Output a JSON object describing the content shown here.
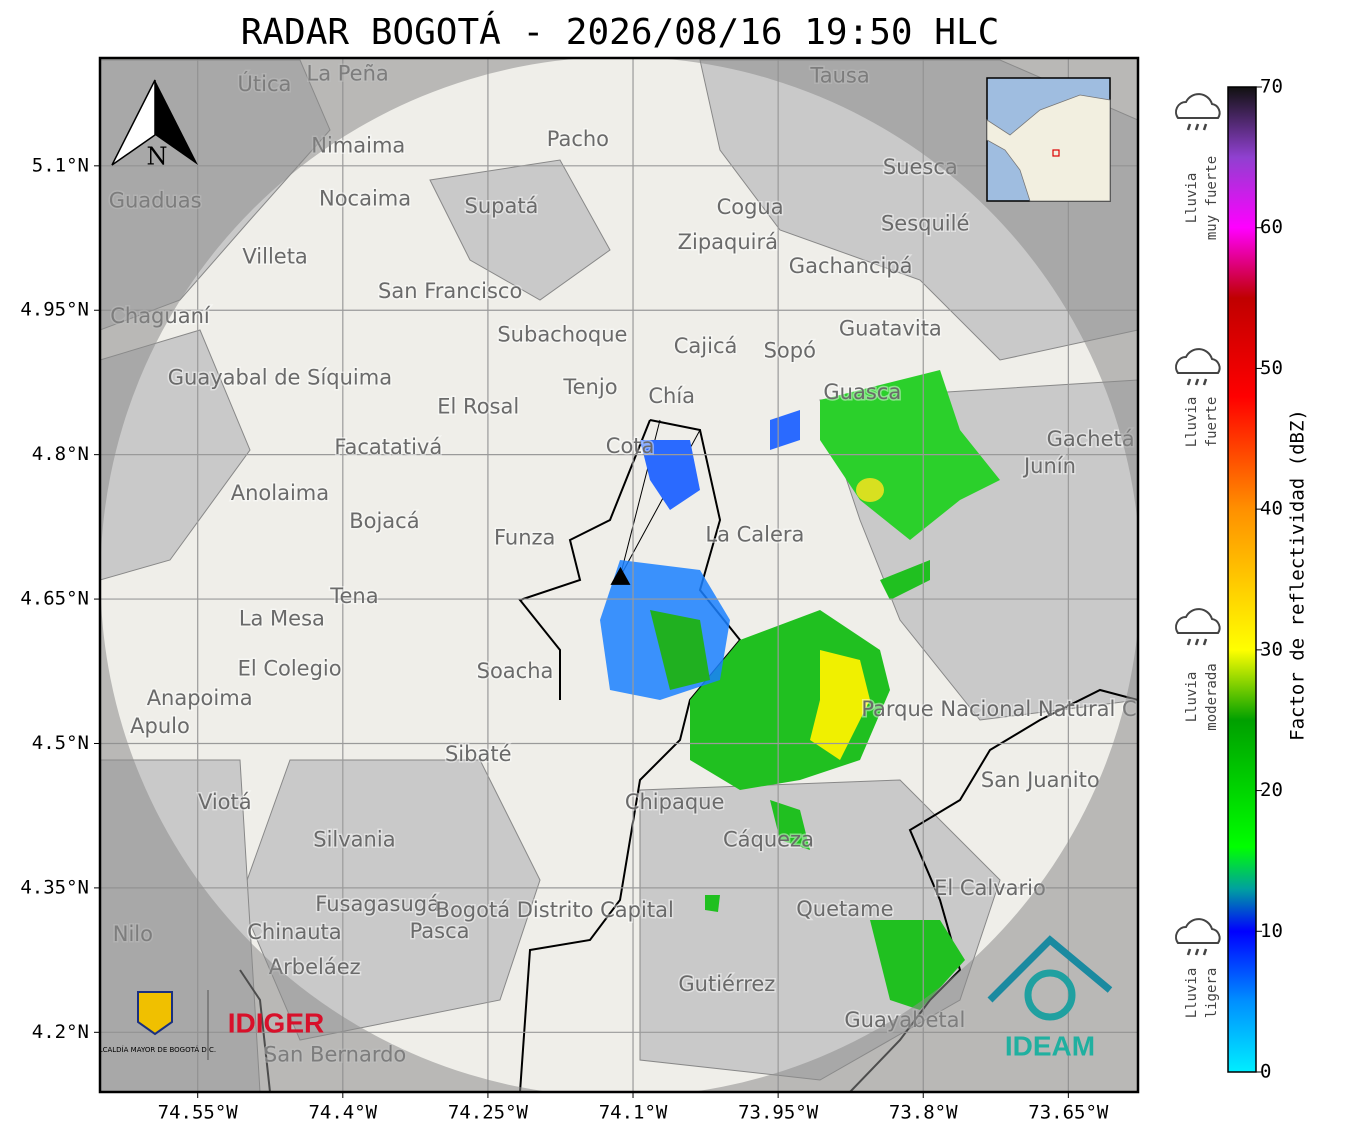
{
  "title": "RADAR BOGOTÁ - 2026/08/16 19:50 HLC",
  "map": {
    "lonlim": [
      -74.651,
      -73.578
    ],
    "latlim": [
      4.138,
      5.212
    ],
    "lonticks": [
      {
        "value": -74.55,
        "label": "74.55°W"
      },
      {
        "value": -74.4,
        "label": "74.4°W"
      },
      {
        "value": -74.25,
        "label": "74.25°W"
      },
      {
        "value": -74.1,
        "label": "74.1°W"
      },
      {
        "value": -73.95,
        "label": "73.95°W"
      },
      {
        "value": -73.8,
        "label": "73.8°W"
      },
      {
        "value": -73.65,
        "label": "73.65°W"
      }
    ],
    "latticks": [
      {
        "value": 5.1,
        "label": "5.1°N"
      },
      {
        "value": 4.95,
        "label": "4.95°N"
      },
      {
        "value": 4.8,
        "label": "4.8°N"
      },
      {
        "value": 4.65,
        "label": "4.65°N"
      },
      {
        "value": 4.5,
        "label": "4.5°N"
      },
      {
        "value": 4.35,
        "label": "4.35°N"
      },
      {
        "value": 4.2,
        "label": "4.2°N"
      }
    ],
    "grid": true,
    "radar": {
      "lon": -74.113,
      "lat": 4.673
    },
    "compass": "N",
    "places": [
      {
        "name": "La Peña",
        "lon": -74.395,
        "lat": 5.195
      },
      {
        "name": "Útica",
        "lon": -74.481,
        "lat": 5.184
      },
      {
        "name": "Tausa",
        "lon": -73.886,
        "lat": 5.193
      },
      {
        "name": "Pacho",
        "lon": -74.157,
        "lat": 5.127
      },
      {
        "name": "Nimaima",
        "lon": -74.384,
        "lat": 5.12
      },
      {
        "name": "Guaduas",
        "lon": -74.594,
        "lat": 5.063
      },
      {
        "name": "Nocaima",
        "lon": -74.377,
        "lat": 5.065
      },
      {
        "name": "Supatá",
        "lon": -74.236,
        "lat": 5.057
      },
      {
        "name": "Suesca",
        "lon": -73.803,
        "lat": 5.098
      },
      {
        "name": "Cogua",
        "lon": -73.979,
        "lat": 5.056
      },
      {
        "name": "Sesquilé",
        "lon": -73.798,
        "lat": 5.039
      },
      {
        "name": "Zipaquirá",
        "lon": -74.002,
        "lat": 5.02
      },
      {
        "name": "Villeta",
        "lon": -74.47,
        "lat": 5.005
      },
      {
        "name": "Gachancipá",
        "lon": -73.875,
        "lat": 4.995
      },
      {
        "name": "San Francisco",
        "lon": -74.289,
        "lat": 4.969
      },
      {
        "name": "Chaguaní",
        "lon": -74.589,
        "lat": 4.943
      },
      {
        "name": "Guatavita",
        "lon": -73.834,
        "lat": 4.93
      },
      {
        "name": "Subachoque",
        "lon": -74.173,
        "lat": 4.924
      },
      {
        "name": "Cajicá",
        "lon": -74.025,
        "lat": 4.912
      },
      {
        "name": "Sopó",
        "lon": -73.938,
        "lat": 4.907
      },
      {
        "name": "Guayabal de Síquima",
        "lon": -74.465,
        "lat": 4.879
      },
      {
        "name": "Tenjo",
        "lon": -74.144,
        "lat": 4.869
      },
      {
        "name": "Guasca",
        "lon": -73.863,
        "lat": 4.864
      },
      {
        "name": "Chía",
        "lon": -74.06,
        "lat": 4.86
      },
      {
        "name": "El Rosal",
        "lon": -74.26,
        "lat": 4.849
      },
      {
        "name": "Facatativá",
        "lon": -74.353,
        "lat": 4.807
      },
      {
        "name": "Cota",
        "lon": -74.103,
        "lat": 4.808
      },
      {
        "name": "Gachetá",
        "lon": -73.627,
        "lat": 4.815
      },
      {
        "name": "Junín",
        "lon": -73.669,
        "lat": 4.787
      },
      {
        "name": "Anolaima",
        "lon": -74.465,
        "lat": 4.759
      },
      {
        "name": "Bojacá",
        "lon": -74.357,
        "lat": 4.73
      },
      {
        "name": "Funza",
        "lon": -74.212,
        "lat": 4.713
      },
      {
        "name": "La Calera",
        "lon": -73.974,
        "lat": 4.716
      },
      {
        "name": "Tena",
        "lon": -74.388,
        "lat": 4.652
      },
      {
        "name": "La Mesa",
        "lon": -74.463,
        "lat": 4.629
      },
      {
        "name": "El Colegio",
        "lon": -74.455,
        "lat": 4.577
      },
      {
        "name": "Soacha",
        "lon": -74.222,
        "lat": 4.574
      },
      {
        "name": "Parque Nacional Natural Chingaza",
        "lon": -73.679,
        "lat": 4.535
      },
      {
        "name": "Anapoima",
        "lon": -74.548,
        "lat": 4.546
      },
      {
        "name": "Apulo",
        "lon": -74.589,
        "lat": 4.517
      },
      {
        "name": "Sibaté",
        "lon": -74.26,
        "lat": 4.488
      },
      {
        "name": "San Juanito",
        "lon": -73.679,
        "lat": 4.461
      },
      {
        "name": "Viotá",
        "lon": -74.522,
        "lat": 4.438
      },
      {
        "name": "Chipaque",
        "lon": -74.057,
        "lat": 4.438
      },
      {
        "name": "Silvania",
        "lon": -74.388,
        "lat": 4.399
      },
      {
        "name": "Cáqueza",
        "lon": -73.96,
        "lat": 4.399
      },
      {
        "name": "El Calvario",
        "lon": -73.731,
        "lat": 4.349
      },
      {
        "name": "Fusagasugá",
        "lon": -74.364,
        "lat": 4.332
      },
      {
        "name": "Bogotá Distrito Capital",
        "lon": -74.181,
        "lat": 4.326
      },
      {
        "name": "Quetame",
        "lon": -73.881,
        "lat": 4.327
      },
      {
        "name": "Chinauta",
        "lon": -74.45,
        "lat": 4.303
      },
      {
        "name": "Pasca",
        "lon": -74.3,
        "lat": 4.304
      },
      {
        "name": "Nilo",
        "lon": -74.617,
        "lat": 4.301
      },
      {
        "name": "Arbeláez",
        "lon": -74.429,
        "lat": 4.267
      },
      {
        "name": "Gutiérrez",
        "lon": -74.003,
        "lat": 4.249
      },
      {
        "name": "Guayabetal",
        "lon": -73.819,
        "lat": 4.212
      },
      {
        "name": "San Bernardo",
        "lon": -74.408,
        "lat": 4.176
      }
    ]
  },
  "colorbar": {
    "label": "Factor de reflectividad (dBZ)",
    "lim": [
      0,
      70
    ],
    "ticks": [
      0,
      10,
      20,
      30,
      40,
      50,
      60,
      70
    ],
    "stops": [
      {
        "value": 0,
        "color": "#00eeff"
      },
      {
        "value": 5,
        "color": "#0090ff"
      },
      {
        "value": 10,
        "color": "#0000ff"
      },
      {
        "value": 13,
        "color": "#00a0a0"
      },
      {
        "value": 16,
        "color": "#00ff00"
      },
      {
        "value": 25,
        "color": "#00a000"
      },
      {
        "value": 30,
        "color": "#ffff00"
      },
      {
        "value": 40,
        "color": "#ff9000"
      },
      {
        "value": 48,
        "color": "#ff0000"
      },
      {
        "value": 55,
        "color": "#c00000"
      },
      {
        "value": 60,
        "color": "#ff00ff"
      },
      {
        "value": 65,
        "color": "#9040d0"
      },
      {
        "value": 70,
        "color": "#111111"
      }
    ],
    "categories": [
      {
        "lines": [
          "Lluvia",
          "muy fuerte"
        ]
      },
      {
        "lines": [
          "Lluvia",
          "fuerte"
        ]
      },
      {
        "lines": [
          "Lluvia",
          "moderada"
        ]
      },
      {
        "lines": [
          "Lluvia",
          "ligera"
        ]
      }
    ]
  },
  "logos": {
    "alcaldia": "ALCALDÍA MAYOR DE BOGOTÁ D.C.",
    "idiger": "IDIGER",
    "ideam": "IDEAM"
  }
}
